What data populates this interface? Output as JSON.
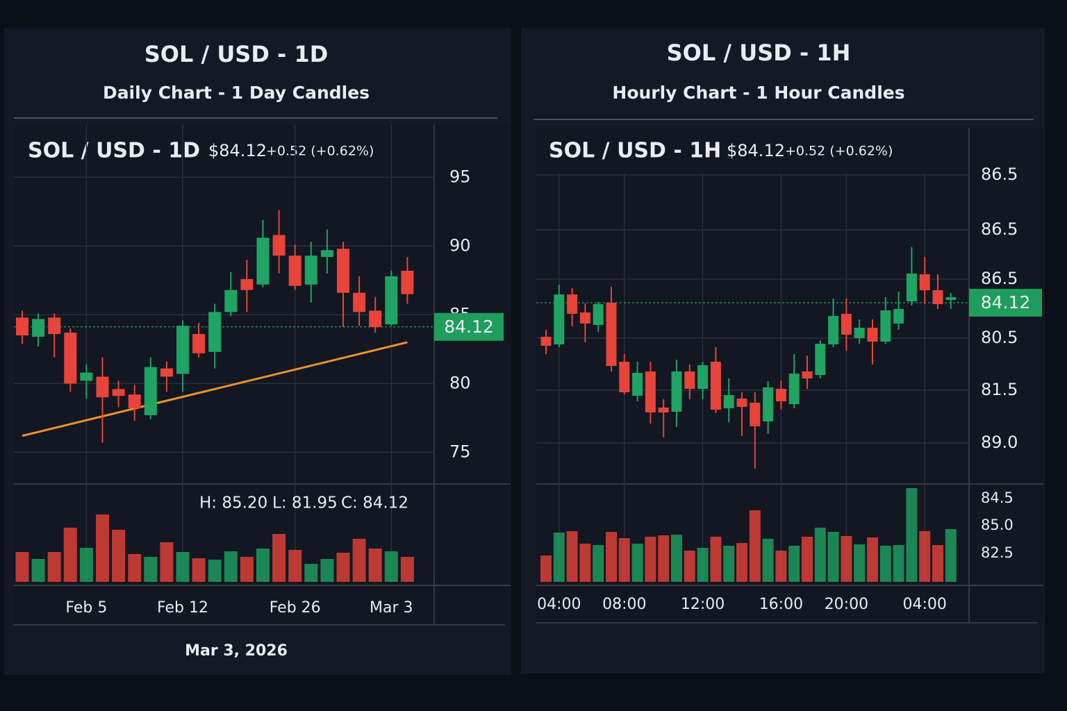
{
  "chart_data": [
    {
      "type": "candlestick",
      "title": "SOL / USD - 1D",
      "subtitle": "Daily Chart - 1 Day Candles",
      "price_label": "$84.12",
      "change_label": "+0.52 (+0.62%)",
      "categories": [
        null,
        null,
        null,
        null,
        "Feb 5",
        null,
        null,
        null,
        null,
        null,
        "Feb 12",
        null,
        null,
        null,
        null,
        null,
        null,
        "Feb 26",
        null,
        null,
        null,
        null,
        null,
        "Mar 3",
        null
      ],
      "open": [
        84.8,
        83.4,
        84.8,
        83.7,
        80.2,
        80.5,
        79.6,
        79.2,
        77.7,
        81.1,
        80.7,
        83.6,
        82.3,
        85.2,
        87.6,
        87.2,
        90.8,
        89.3,
        87.2,
        89.2,
        89.8,
        86.6,
        85.3,
        84.3,
        88.2
      ],
      "high": [
        85.3,
        85.1,
        85.1,
        84.0,
        81.4,
        81.9,
        80.2,
        79.9,
        81.9,
        81.6,
        84.6,
        84.4,
        85.8,
        88.1,
        89.0,
        91.9,
        92.6,
        90.1,
        90.3,
        91.2,
        90.3,
        87.8,
        86.3,
        88.2,
        89.2
      ],
      "low": [
        82.9,
        82.7,
        81.9,
        79.4,
        78.9,
        75.7,
        78.3,
        77.3,
        77.4,
        79.4,
        79.4,
        81.9,
        81.1,
        84.9,
        85.2,
        87.0,
        88.0,
        86.8,
        85.9,
        88.0,
        84.1,
        84.2,
        83.7,
        84.2,
        85.8
      ],
      "close": [
        83.5,
        84.7,
        83.6,
        80.0,
        80.8,
        79.0,
        79.1,
        78.2,
        81.2,
        80.5,
        84.2,
        82.2,
        85.2,
        86.8,
        86.8,
        90.6,
        89.3,
        87.1,
        89.3,
        89.7,
        86.6,
        85.2,
        84.1,
        87.8,
        86.5
      ],
      "volume": [
        43,
        33,
        43,
        78,
        49,
        97,
        75,
        40,
        36,
        57,
        43,
        34,
        32,
        44,
        36,
        48,
        69,
        46,
        26,
        33,
        42,
        62,
        48,
        44,
        36
      ],
      "vlim": [
        0,
        140
      ],
      "up_color": "#1fa463",
      "down_color": "#e8443a",
      "ylim": [
        72.8,
        98.8
      ],
      "yticks": [
        75,
        80,
        85,
        90,
        95
      ],
      "grid": true,
      "last_price": 84.12,
      "trendline": {
        "color": "#f0922e",
        "values": [
          76.2,
          83.0
        ]
      },
      "stats": [
        "H: 85.20",
        "L: 81.95",
        "C: 84.12"
      ],
      "footer": "Mar 3, 2026"
    },
    {
      "type": "candlestick",
      "title": "SOL / USD - 1H",
      "subtitle": "Hourly Chart - 1 Hour Candles",
      "price_label": "$84.12",
      "change_label": "+0.52 (+0.62%)",
      "categories": [
        null,
        "04:00",
        null,
        null,
        null,
        null,
        "08:00",
        null,
        null,
        null,
        null,
        null,
        "12:00",
        null,
        null,
        null,
        null,
        null,
        "16:00",
        null,
        null,
        null,
        null,
        "20:00",
        null,
        null,
        null,
        null,
        null,
        "04:00",
        null,
        null
      ],
      "open": [
        83.14,
        82.92,
        84.36,
        83.84,
        83.48,
        84.12,
        82.42,
        81.44,
        82.14,
        81.1,
        80.98,
        82.14,
        81.64,
        82.42,
        81.08,
        81.36,
        81.24,
        80.7,
        81.64,
        81.2,
        82.14,
        82.04,
        82.92,
        83.8,
        83.1,
        83.4,
        83.0,
        83.52,
        84.16,
        84.94,
        84.48,
        84.2
      ],
      "high": [
        83.34,
        84.64,
        84.54,
        84.1,
        84.14,
        84.58,
        82.64,
        82.42,
        82.42,
        81.34,
        82.48,
        82.34,
        82.42,
        82.84,
        81.94,
        81.54,
        81.54,
        81.86,
        81.88,
        82.64,
        82.6,
        83.04,
        84.24,
        84.24,
        83.64,
        83.64,
        84.28,
        84.44,
        85.72,
        85.44,
        84.94,
        84.4
      ],
      "low": [
        82.64,
        82.84,
        83.44,
        82.98,
        83.28,
        82.14,
        81.48,
        81.28,
        80.64,
        80.24,
        80.54,
        81.34,
        81.34,
        80.94,
        80.68,
        80.28,
        79.34,
        80.34,
        81.04,
        81.08,
        81.64,
        81.94,
        82.84,
        82.74,
        82.94,
        82.34,
        82.94,
        83.34,
        84.04,
        84.08,
        83.94,
        83.94
      ],
      "close": [
        82.88,
        84.36,
        83.8,
        83.52,
        84.08,
        82.3,
        81.54,
        82.1,
        80.96,
        80.96,
        82.14,
        81.64,
        82.32,
        81.04,
        81.46,
        81.12,
        80.56,
        81.68,
        81.28,
        82.08,
        81.94,
        82.94,
        83.74,
        83.2,
        83.4,
        83.0,
        83.9,
        83.94,
        84.96,
        84.48,
        84.08,
        84.28
      ],
      "volume": [
        38,
        71,
        73,
        55,
        53,
        72,
        63,
        55,
        65,
        67,
        68,
        45,
        49,
        65,
        52,
        56,
        103,
        62,
        45,
        52,
        65,
        78,
        72,
        66,
        54,
        64,
        52,
        53,
        135,
        73,
        53,
        76
      ],
      "vlim": [
        0,
        140
      ],
      "up_color": "#1fa463",
      "down_color": "#e8443a",
      "ylim": [
        78.94,
        89.14
      ],
      "grid": true,
      "axis_labels": [
        "86.5",
        "86.5",
        "86.5",
        "80.5",
        "81.5",
        "89.0"
      ],
      "volume_axis_labels": [
        "84.5",
        "85.0",
        "82.5"
      ],
      "last_price": 84.12
    }
  ]
}
